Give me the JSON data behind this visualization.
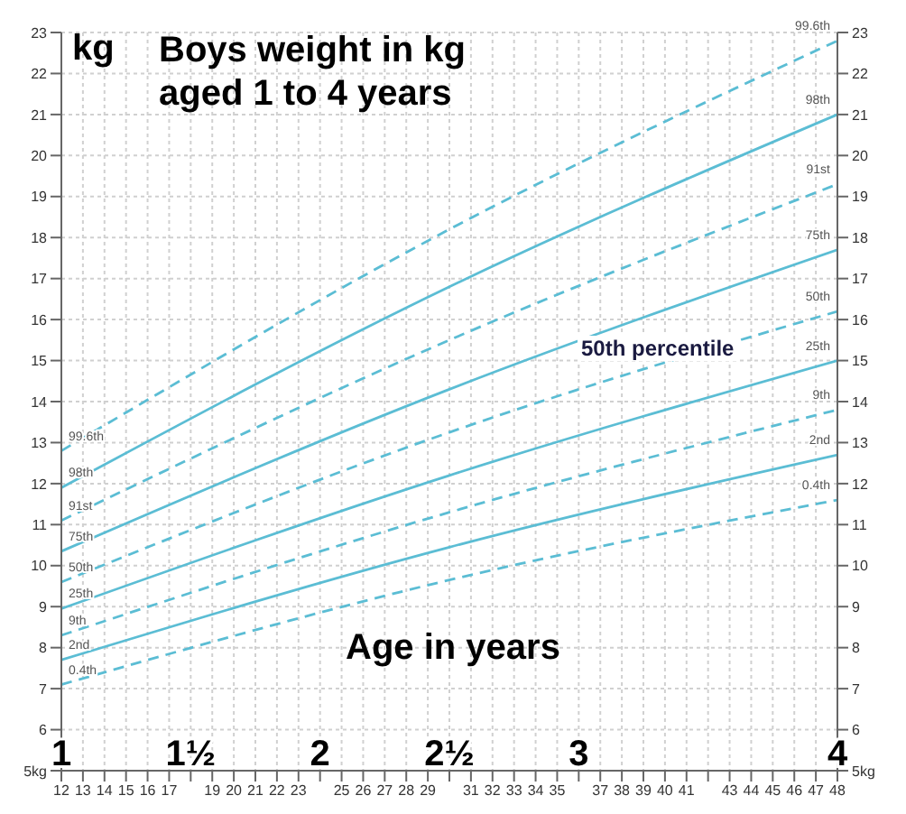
{
  "chart_data": {
    "type": "line",
    "title": "Boys weight in kg aged 1 to 4 years",
    "ylabel": "kg",
    "xlabel": "Age in years",
    "x": [
      12,
      30,
      48
    ],
    "xlim": [
      12,
      48
    ],
    "xticks": [
      12,
      13,
      14,
      15,
      16,
      17,
      {
        "value": 18,
        "label": null
      },
      19,
      20,
      21,
      22,
      23,
      {
        "value": 24,
        "label": null
      },
      25,
      26,
      27,
      28,
      29,
      {
        "value": 30,
        "label": null
      },
      31,
      32,
      33,
      34,
      35,
      {
        "value": 36,
        "label": null
      },
      37,
      38,
      39,
      40,
      41,
      {
        "value": 42,
        "label": null
      },
      43,
      44,
      45,
      46,
      47,
      48
    ],
    "x2lim": [
      1,
      4
    ],
    "x2ticks": [
      1,
      {
        "value": 1.5,
        "label": "1½"
      },
      2,
      {
        "value": 2.5,
        "label": "2½"
      },
      3,
      4
    ],
    "ylim": [
      5,
      23
    ],
    "yticks": [
      {
        "value": 5,
        "label": "5kg"
      },
      6,
      7,
      8,
      9,
      10,
      11,
      12,
      13,
      14,
      15,
      16,
      17,
      18,
      19,
      20,
      21,
      22,
      23
    ],
    "y2lim": [
      5,
      23
    ],
    "y2ticks": [
      {
        "value": 5,
        "label": "5kg"
      },
      6,
      7,
      8,
      9,
      10,
      11,
      12,
      13,
      14,
      15,
      16,
      17,
      18,
      19,
      20,
      21,
      22,
      23
    ],
    "grid": true,
    "legend": false,
    "marker": "none",
    "series": [
      {
        "name": "99.6th",
        "color": "#5bbdd4",
        "line_style": "dashed",
        "values": [
          12.8,
          18.2,
          22.8
        ]
      },
      {
        "name": "98th",
        "color": "#5bbdd4",
        "line_style": "solid",
        "values": [
          11.9,
          16.8,
          21.0
        ]
      },
      {
        "name": "91st",
        "color": "#5bbdd4",
        "line_style": "dashed",
        "values": [
          11.1,
          15.5,
          19.3
        ]
      },
      {
        "name": "75th",
        "color": "#5bbdd4",
        "line_style": "solid",
        "values": [
          10.35,
          14.3,
          17.7
        ]
      },
      {
        "name": "50th",
        "color": "#5bbdd4",
        "line_style": "dashed",
        "values": [
          9.6,
          13.25,
          16.2
        ]
      },
      {
        "name": "25th",
        "color": "#5bbdd4",
        "line_style": "solid",
        "values": [
          8.95,
          12.2,
          15.0
        ]
      },
      {
        "name": "9th",
        "color": "#5bbdd4",
        "line_style": "dashed",
        "values": [
          8.3,
          11.3,
          13.8
        ]
      },
      {
        "name": "2nd",
        "color": "#5bbdd4",
        "line_style": "solid",
        "values": [
          7.7,
          10.45,
          12.7
        ]
      },
      {
        "name": "0.4th",
        "color": "#5bbdd4",
        "line_style": "dashed",
        "values": [
          7.1,
          9.65,
          11.6
        ]
      }
    ],
    "annotations": [
      "50th percentile"
    ]
  }
}
